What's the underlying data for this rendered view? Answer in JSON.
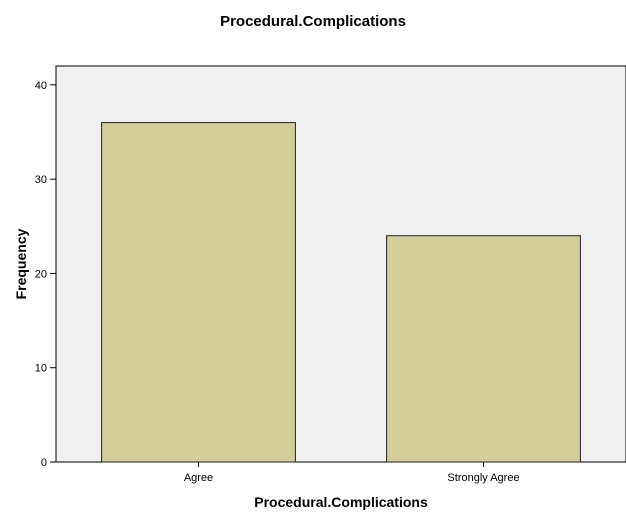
{
  "chart_data": {
    "type": "bar",
    "title": "Procedural.Complications",
    "xlabel": "Procedural.Complications",
    "ylabel": "Frequency",
    "categories": [
      "Agree",
      "Strongly Agree"
    ],
    "values": [
      36,
      24
    ],
    "ylim": [
      0,
      42
    ],
    "yticks": [
      0,
      10,
      20,
      30,
      40
    ],
    "grid": false,
    "legend": "none",
    "colors": {
      "bar_fill": "#d3ce97",
      "bar_stroke": "#222222",
      "plot_background": "#f0f0f0",
      "axis": "#000000"
    }
  }
}
